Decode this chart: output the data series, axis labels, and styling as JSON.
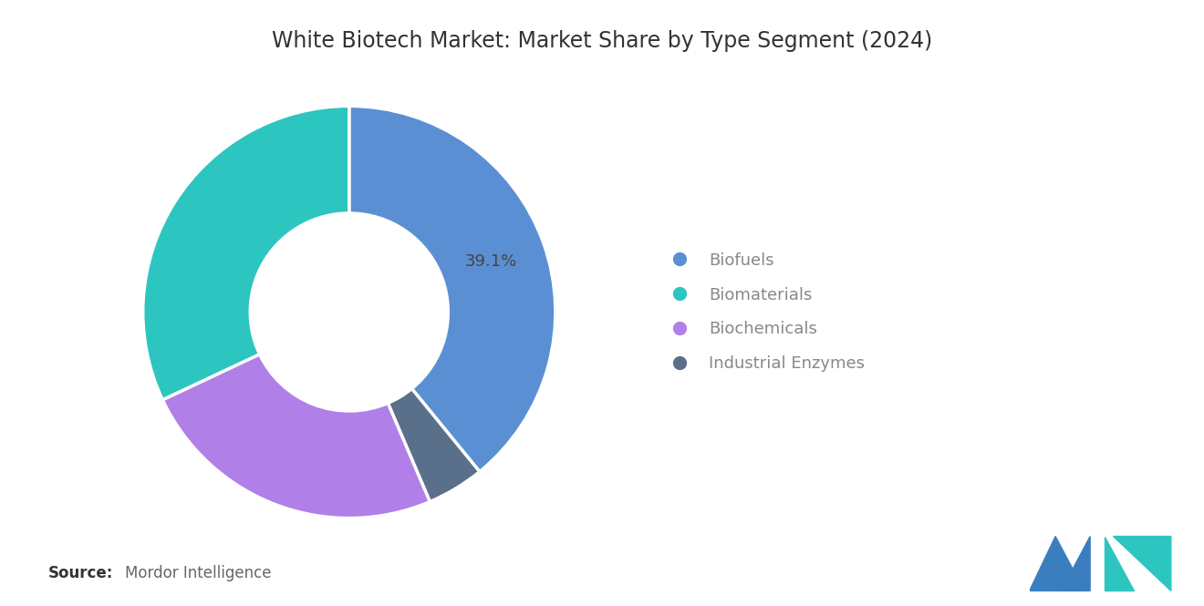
{
  "title": "White Biotech Market: Market Share by Type Segment (2024)",
  "segments": [
    "Biofuels",
    "Industrial Enzymes",
    "Biochemicals",
    "Biomaterials"
  ],
  "values": [
    39.1,
    4.5,
    24.4,
    32.0
  ],
  "colors": [
    "#5B8FD4",
    "#5A6F8A",
    "#B07FE8",
    "#2DC5C0"
  ],
  "legend_order": [
    "Biofuels",
    "Biomaterials",
    "Biochemicals",
    "Industrial Enzymes"
  ],
  "legend_colors": [
    "#5B8FD4",
    "#2DC5C0",
    "#B07FE8",
    "#5A6F8A"
  ],
  "label_text": "39.1%",
  "source_bold": "Source:",
  "source_text": "Mordor Intelligence",
  "background_color": "#FFFFFF",
  "title_fontsize": 17,
  "legend_fontsize": 13,
  "source_fontsize": 12,
  "donut_width": 0.52,
  "start_angle": 90,
  "logo_color1": "#3B7EC0",
  "logo_color2": "#2DC5C0"
}
